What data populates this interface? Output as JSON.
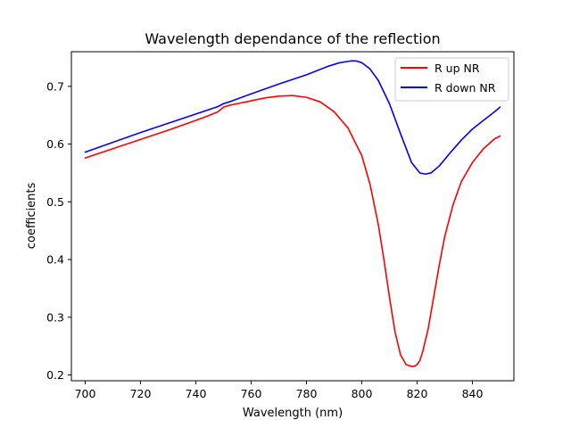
{
  "chart_data": {
    "type": "line",
    "title": "Wavelength dependance of the reflection",
    "xlabel": "Wavelength (nm)",
    "ylabel": "coefficients",
    "xlim": [
      695,
      855
    ],
    "ylim": [
      0.19,
      0.76
    ],
    "xticks": [
      "700",
      "720",
      "740",
      "760",
      "780",
      "800",
      "820",
      "840"
    ],
    "yticks": [
      "0.2",
      "0.3",
      "0.4",
      "0.5",
      "0.6",
      "0.7"
    ],
    "grid": false,
    "legend_position": "top-right",
    "series": [
      {
        "name": "R up NR",
        "color": "#ff0000",
        "x": [
          700,
          710,
          720,
          730,
          740,
          745,
          748,
          750,
          752,
          755,
          760,
          765,
          770,
          775,
          780,
          785,
          790,
          795,
          800,
          803,
          806,
          808,
          810,
          812,
          814,
          816,
          818,
          819,
          820,
          821,
          822,
          824,
          826,
          828,
          830,
          833,
          836,
          840,
          844,
          848,
          850
        ],
        "y": [
          0.576,
          0.592,
          0.608,
          0.624,
          0.641,
          0.65,
          0.656,
          0.664,
          0.667,
          0.67,
          0.675,
          0.68,
          0.683,
          0.684,
          0.681,
          0.673,
          0.656,
          0.628,
          0.58,
          0.53,
          0.46,
          0.4,
          0.335,
          0.275,
          0.235,
          0.218,
          0.215,
          0.215,
          0.218,
          0.225,
          0.24,
          0.28,
          0.335,
          0.39,
          0.44,
          0.495,
          0.535,
          0.568,
          0.592,
          0.609,
          0.614
        ]
      },
      {
        "name": "R down NR",
        "color": "#0000ff",
        "x": [
          700,
          710,
          720,
          730,
          740,
          748,
          750,
          752,
          760,
          770,
          780,
          788,
          792,
          796,
          798,
          800,
          803,
          806,
          810,
          814,
          818,
          821,
          823,
          825,
          828,
          832,
          836,
          840,
          844,
          848,
          850
        ],
        "y": [
          0.586,
          0.603,
          0.62,
          0.636,
          0.652,
          0.665,
          0.67,
          0.673,
          0.687,
          0.704,
          0.72,
          0.735,
          0.741,
          0.744,
          0.744,
          0.741,
          0.73,
          0.71,
          0.67,
          0.618,
          0.568,
          0.55,
          0.548,
          0.55,
          0.562,
          0.585,
          0.607,
          0.626,
          0.641,
          0.656,
          0.664
        ]
      }
    ]
  }
}
